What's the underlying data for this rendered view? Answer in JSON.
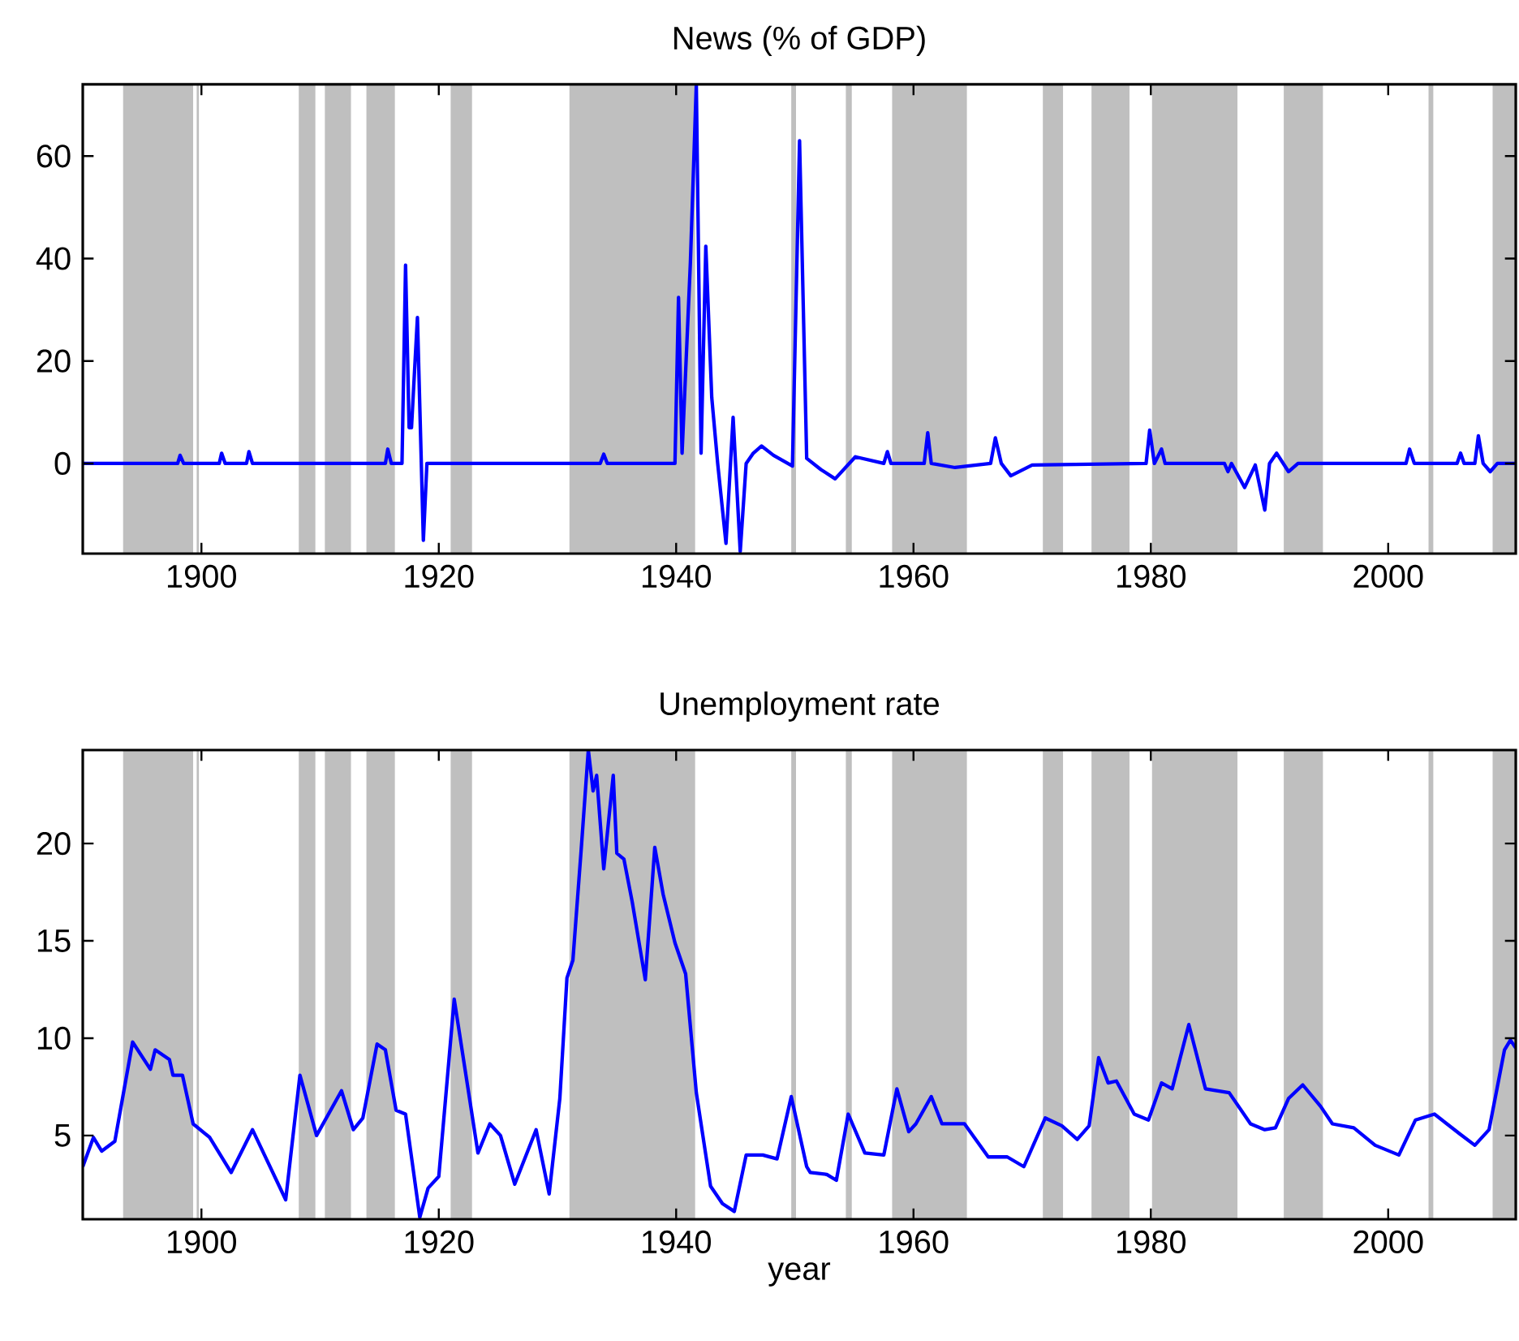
{
  "chart_data": [
    {
      "type": "line",
      "title": "News (% of GDP)",
      "xlim": [
        1890,
        2010.75
      ],
      "ylim": [
        -17.6,
        74
      ],
      "xticks": [
        1900,
        1920,
        1940,
        1960,
        1980,
        2000
      ],
      "yticks": [
        0,
        20,
        40,
        60
      ],
      "x": [
        1890,
        1898,
        1898.2,
        1898.5,
        1901.5,
        1901.7,
        1902,
        1903.8,
        1904,
        1904.3,
        1915.5,
        1915.7,
        1916,
        1916.9,
        1917.2,
        1917.5,
        1917.7,
        1918.2,
        1918.7,
        1919,
        1933.6,
        1933.9,
        1934.2,
        1939.9,
        1940.2,
        1940.5,
        1941.2,
        1941.7,
        1942.1,
        1942.5,
        1943,
        1943.5,
        1944.2,
        1944.8,
        1945.4,
        1945.9,
        1946.5,
        1947.2,
        1948.2,
        1949.8,
        1950.4,
        1951,
        1952.2,
        1953.4,
        1955.1,
        1957.5,
        1957.8,
        1958.1,
        1960.9,
        1961.2,
        1961.5,
        1963.5,
        1966.5,
        1966.9,
        1967.4,
        1968.2,
        1970,
        1979.6,
        1979.9,
        1980.3,
        1980.9,
        1981.2,
        1986.2,
        1986.5,
        1986.8,
        1987.9,
        1988.8,
        1989.6,
        1990,
        1990.6,
        1991.6,
        1992.4,
        2001.5,
        2001.8,
        2002.2,
        2005.8,
        2006.1,
        2006.4,
        2007.3,
        2007.6,
        2008,
        2008.6,
        2009.2,
        2010.75
      ],
      "series": [
        {
          "color": "#0000ff",
          "values": [
            0,
            0,
            1.6,
            0,
            0,
            2,
            0,
            0,
            2.3,
            0,
            0,
            2.8,
            0,
            0,
            38.7,
            7,
            7,
            28.5,
            -15,
            0,
            0,
            1.8,
            0,
            0,
            32.4,
            2,
            39.2,
            74,
            2,
            42.4,
            12.9,
            0,
            -15.6,
            9,
            -17.2,
            0,
            2,
            3.4,
            1.6,
            -0.5,
            63,
            1,
            -1.2,
            -3,
            1.3,
            0,
            2.3,
            0,
            0,
            6,
            0,
            -0.8,
            0,
            5,
            0,
            -2.4,
            -0.3,
            0,
            6.5,
            0,
            2.8,
            0,
            0,
            -1.6,
            0,
            -4.7,
            -0.3,
            -9.1,
            0,
            2,
            -1.6,
            0,
            0,
            2.8,
            0,
            0,
            2,
            0,
            0,
            5.4,
            0,
            -1.6,
            0,
            0
          ]
        }
      ],
      "bands": [
        {
          "axis": "x",
          "from": 1893.4,
          "to": 1899.3,
          "color": "#bfbfbf"
        },
        {
          "axis": "x",
          "from": 1899.6,
          "to": 1899.8,
          "color": "#bfbfbf"
        },
        {
          "axis": "x",
          "from": 1908.2,
          "to": 1909.6,
          "color": "#bfbfbf"
        },
        {
          "axis": "x",
          "from": 1910.4,
          "to": 1912.6,
          "color": "#bfbfbf"
        },
        {
          "axis": "x",
          "from": 1913.9,
          "to": 1916.3,
          "color": "#bfbfbf"
        },
        {
          "axis": "x",
          "from": 1921.0,
          "to": 1922.8,
          "color": "#bfbfbf"
        },
        {
          "axis": "x",
          "from": 1931.0,
          "to": 1941.6,
          "color": "#bfbfbf"
        },
        {
          "axis": "x",
          "from": 1949.7,
          "to": 1950.1,
          "color": "#bfbfbf"
        },
        {
          "axis": "x",
          "from": 1954.3,
          "to": 1954.8,
          "color": "#bfbfbf"
        },
        {
          "axis": "x",
          "from": 1958.2,
          "to": 1964.5,
          "color": "#bfbfbf"
        },
        {
          "axis": "x",
          "from": 1970.9,
          "to": 1972.6,
          "color": "#bfbfbf"
        },
        {
          "axis": "x",
          "from": 1975.0,
          "to": 1978.2,
          "color": "#bfbfbf"
        },
        {
          "axis": "x",
          "from": 1980.1,
          "to": 1987.3,
          "color": "#bfbfbf"
        },
        {
          "axis": "x",
          "from": 1991.2,
          "to": 1994.5,
          "color": "#bfbfbf"
        },
        {
          "axis": "x",
          "from": 2003.4,
          "to": 2003.8,
          "color": "#bfbfbf"
        },
        {
          "axis": "x",
          "from": 2008.8,
          "to": 2010.75,
          "color": "#bfbfbf"
        }
      ]
    },
    {
      "type": "line",
      "title": "Unemployment rate",
      "xlabel": "year",
      "xlim": [
        1890,
        2010.75
      ],
      "ylim": [
        0.7,
        24.8
      ],
      "xticks": [
        1900,
        1920,
        1940,
        1960,
        1980,
        2000
      ],
      "yticks": [
        5,
        10,
        15,
        20
      ],
      "x": [
        1890,
        1890.9,
        1891.6,
        1892.7,
        1894.2,
        1895.7,
        1896.1,
        1897.3,
        1897.6,
        1898.4,
        1899.3,
        1900.7,
        1902.5,
        1904.3,
        1907.1,
        1908.3,
        1909.7,
        1911.8,
        1912.8,
        1913.6,
        1914.8,
        1915.5,
        1916.4,
        1917.2,
        1918.4,
        1919.1,
        1920,
        1921.3,
        1923.3,
        1924.3,
        1925.2,
        1926.4,
        1928.2,
        1929.3,
        1930.2,
        1930.8,
        1931.3,
        1932,
        1932.6,
        1933,
        1933.3,
        1933.9,
        1934.7,
        1935,
        1935.6,
        1936.3,
        1937.4,
        1938.2,
        1938.9,
        1939.9,
        1940.8,
        1941.7,
        1942.9,
        1943.9,
        1944.9,
        1945.9,
        1947.3,
        1948.5,
        1949.7,
        1951,
        1951.3,
        1952.7,
        1953.5,
        1954.5,
        1955.9,
        1957.5,
        1958.6,
        1959.6,
        1960.2,
        1961.5,
        1962.4,
        1964.3,
        1966.3,
        1967.9,
        1969.3,
        1971.1,
        1972.5,
        1973.8,
        1974.8,
        1975.6,
        1976.4,
        1977.1,
        1978.6,
        1979.8,
        1980.9,
        1981.8,
        1983.2,
        1984.6,
        1986.6,
        1988.4,
        1989.6,
        1990.5,
        1991.6,
        1992.8,
        1994.3,
        1995.3,
        1997.1,
        1998.9,
        2000.9,
        2002.3,
        2003.9,
        2006,
        2007.3,
        2008.5,
        2009.8,
        2010.3,
        2010.75
      ],
      "series": [
        {
          "color": "#0000ff",
          "values": [
            3.4,
            4.9,
            4.2,
            4.7,
            9.8,
            8.4,
            9.4,
            8.9,
            8.1,
            8.1,
            5.6,
            4.9,
            3.1,
            5.3,
            1.7,
            8.1,
            5.0,
            7.3,
            5.3,
            5.9,
            9.7,
            9.4,
            6.3,
            6.1,
            0.8,
            2.3,
            2.9,
            12.0,
            4.1,
            5.6,
            5.0,
            2.5,
            5.3,
            2.0,
            6.9,
            13.1,
            14.0,
            19.7,
            24.8,
            22.7,
            23.5,
            18.7,
            23.5,
            19.5,
            19.2,
            17.0,
            13.0,
            19.8,
            17.4,
            14.9,
            13.3,
            7.2,
            2.4,
            1.5,
            1.1,
            4.0,
            4.0,
            3.8,
            7.0,
            3.4,
            3.1,
            3.0,
            2.7,
            6.1,
            4.1,
            4.0,
            7.4,
            5.2,
            5.6,
            7.0,
            5.6,
            5.6,
            3.9,
            3.9,
            3.4,
            5.9,
            5.5,
            4.8,
            5.5,
            9.0,
            7.7,
            7.8,
            6.1,
            5.8,
            7.7,
            7.4,
            10.7,
            7.4,
            7.2,
            5.6,
            5.3,
            5.4,
            6.9,
            7.6,
            6.5,
            5.6,
            5.4,
            4.5,
            4.0,
            5.8,
            6.1,
            5.1,
            4.5,
            5.3,
            9.4,
            9.9,
            9.5
          ]
        }
      ],
      "bands": [
        {
          "axis": "x",
          "from": 1893.4,
          "to": 1899.3,
          "color": "#bfbfbf"
        },
        {
          "axis": "x",
          "from": 1899.6,
          "to": 1899.8,
          "color": "#bfbfbf"
        },
        {
          "axis": "x",
          "from": 1908.2,
          "to": 1909.6,
          "color": "#bfbfbf"
        },
        {
          "axis": "x",
          "from": 1910.4,
          "to": 1912.6,
          "color": "#bfbfbf"
        },
        {
          "axis": "x",
          "from": 1913.9,
          "to": 1916.3,
          "color": "#bfbfbf"
        },
        {
          "axis": "x",
          "from": 1921.0,
          "to": 1922.8,
          "color": "#bfbfbf"
        },
        {
          "axis": "x",
          "from": 1931.0,
          "to": 1941.6,
          "color": "#bfbfbf"
        },
        {
          "axis": "x",
          "from": 1949.7,
          "to": 1950.1,
          "color": "#bfbfbf"
        },
        {
          "axis": "x",
          "from": 1954.3,
          "to": 1954.8,
          "color": "#bfbfbf"
        },
        {
          "axis": "x",
          "from": 1958.2,
          "to": 1964.5,
          "color": "#bfbfbf"
        },
        {
          "axis": "x",
          "from": 1970.9,
          "to": 1972.6,
          "color": "#bfbfbf"
        },
        {
          "axis": "x",
          "from": 1975.0,
          "to": 1978.2,
          "color": "#bfbfbf"
        },
        {
          "axis": "x",
          "from": 1980.1,
          "to": 1987.3,
          "color": "#bfbfbf"
        },
        {
          "axis": "x",
          "from": 1991.2,
          "to": 1994.5,
          "color": "#bfbfbf"
        },
        {
          "axis": "x",
          "from": 2003.4,
          "to": 2003.8,
          "color": "#bfbfbf"
        },
        {
          "axis": "x",
          "from": 2008.8,
          "to": 2010.75,
          "color": "#bfbfbf"
        }
      ]
    }
  ]
}
